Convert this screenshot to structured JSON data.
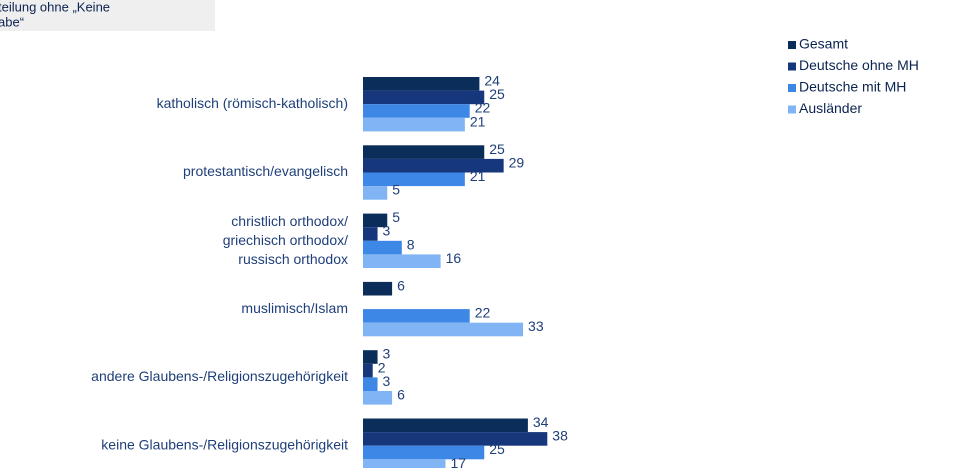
{
  "chart_data": {
    "type": "bar",
    "orientation": "horizontal",
    "note_lines": [
      "teilung ohne „Keine",
      "abe“"
    ],
    "categories": [
      "katholisch (römisch-katholisch)",
      "protestantisch/evangelisch",
      "christlich orthodox/\ngriechisch orthodox/\nrussisch orthodox",
      "muslimisch/Islam",
      "andere Glaubens-/Religionszugehörigkeit",
      "keine Glaubens-/Religionszugehörigkeit"
    ],
    "series": [
      {
        "name": "Gesamt",
        "color": "#0b2d5a",
        "values": [
          24,
          25,
          5,
          6,
          3,
          34
        ]
      },
      {
        "name": "Deutsche ohne MH",
        "color": "#17377c",
        "values": [
          25,
          29,
          3,
          null,
          2,
          38
        ]
      },
      {
        "name": "Deutsche mit MH",
        "color": "#3d87e6",
        "values": [
          22,
          21,
          8,
          22,
          3,
          25
        ]
      },
      {
        "name": "Ausländer",
        "color": "#80b4f4",
        "values": [
          21,
          5,
          16,
          33,
          6,
          17
        ]
      }
    ],
    "legend": "top-right"
  }
}
